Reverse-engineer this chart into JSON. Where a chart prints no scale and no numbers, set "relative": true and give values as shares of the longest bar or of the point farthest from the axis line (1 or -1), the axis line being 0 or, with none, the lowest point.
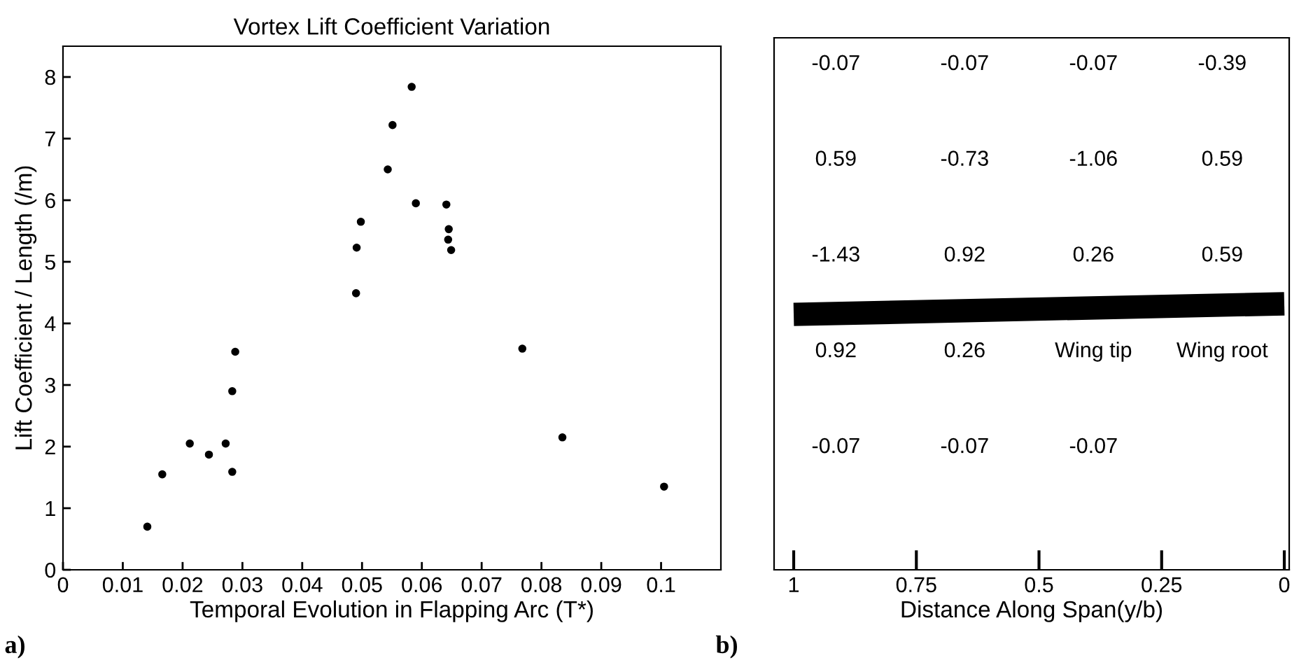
{
  "chart_data": [
    {
      "type": "scatter",
      "title": "Vortex Lift Coefficient Variation",
      "xlabel": "Temporal Evolution in Flapping Arc (T*)",
      "ylabel": "Lift Coefficient / Length (/m)",
      "x": [
        0.0141,
        0.0166,
        0.0212,
        0.0244,
        0.0272,
        0.0283,
        0.0283,
        0.0288,
        0.049,
        0.0491,
        0.0498,
        0.0543,
        0.0551,
        0.0583,
        0.059,
        0.0641,
        0.0645,
        0.0644,
        0.0649,
        0.0768,
        0.0835,
        0.1005
      ],
      "series": [
        {
          "color": "#000000",
          "values": [
            0.7,
            1.55,
            2.05,
            1.87,
            2.05,
            1.59,
            2.9,
            3.54,
            4.49,
            5.23,
            5.65,
            6.5,
            7.22,
            7.84,
            5.95,
            5.93,
            5.53,
            5.36,
            5.19,
            3.59,
            2.15,
            1.35
          ]
        }
      ],
      "marker": "circle",
      "xlim": [
        0,
        0.11
      ],
      "ylim": [
        0,
        8.5
      ],
      "xticks": [
        0,
        0.01,
        0.02,
        0.03,
        0.04,
        0.05,
        0.06,
        0.07,
        0.08,
        0.09,
        0.1
      ],
      "yticks": [
        0,
        1,
        2,
        3,
        4,
        5,
        6,
        7,
        8
      ],
      "annotations": [
        "a)"
      ]
    },
    {
      "type": "line",
      "xlabel": "Distance Along Span(y/b)",
      "xlim": [
        1.04,
        -0.01
      ],
      "relative": true,
      "xticks": [
        1,
        0.75,
        0.5,
        0.25,
        0
      ],
      "tick_labels": "x",
      "series": [
        {
          "type": "line",
          "color": "#000000",
          "x": [
            1,
            0
          ],
          "values": [
            0.96,
            1
          ]
        }
      ],
      "annotations": [
        "-0.07",
        "-0.07",
        "-0.07",
        "-0.39",
        "0.59",
        "-0.73",
        "-1.06",
        "0.59",
        "-1.43",
        "0.92",
        "0.26",
        "0.59",
        "0.92",
        "0.26",
        "Wing tip",
        "Wing root",
        "-0.07",
        "-0.07",
        "-0.07",
        "b)"
      ]
    }
  ]
}
